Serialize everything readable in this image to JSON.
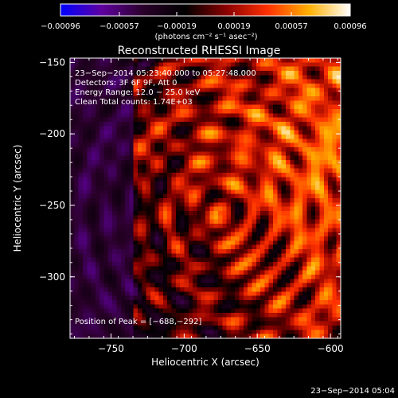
{
  "chart_data": {
    "type": "heatmap",
    "title": "Reconstructed RHESSI Image",
    "xlabel": "Heliocentric X (arcsec)",
    "ylabel": "Heliocentric Y (arcsec)",
    "xlim": [
      -778,
      -593
    ],
    "ylim": [
      -343,
      -147
    ],
    "x_ticks": [
      -750,
      -700,
      -650,
      -600
    ],
    "y_ticks": [
      -150,
      -200,
      -250,
      -300
    ],
    "x_tick_labels": [
      "−750",
      "−700",
      "−650",
      "−600"
    ],
    "y_tick_labels": [
      "−150",
      "−200",
      "−250",
      "−300"
    ],
    "colorbar": {
      "range": [
        -0.00096,
        0.00096
      ],
      "ticks": [
        -0.00096,
        -0.00057,
        -0.00019,
        0.00019,
        0.00057,
        0.00096
      ],
      "tick_labels": [
        "−0.00096",
        "−0.00057",
        "−0.00019",
        "0.00019",
        "0.00057",
        "0.00096"
      ],
      "units_label": "(photons cm⁻² s⁻¹ asec⁻²)",
      "colormap": [
        "#0000ff",
        "#6000a0",
        "#2a002a",
        "#000000",
        "#8a0000",
        "#ff3000",
        "#ffb000",
        "#ffffff"
      ]
    },
    "grid": false,
    "annotations": [
      "23−Sep−2014 05:23:40.000 to 05:27:48.000",
      "Detectors: 3F 6F 9F, Att 0",
      "Energy Range: 12.0 − 25.0 keV",
      "Clean     Total counts: 1.74E+03"
    ],
    "peak_label": "Position of Peak = [−688,−292]",
    "peak_position": [
      -688,
      -292
    ]
  },
  "footer": {
    "timestamp": "23−Sep−2014 05:04"
  }
}
